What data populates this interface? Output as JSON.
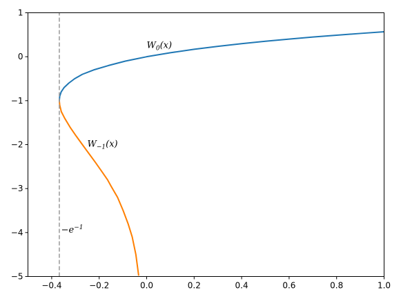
{
  "chart_data": {
    "type": "line",
    "title": "",
    "xlabel": "",
    "ylabel": "",
    "xlim": [
      -0.5,
      1.0
    ],
    "ylim": [
      -5,
      1
    ],
    "grid": false,
    "x_ticks": [
      -0.4,
      -0.2,
      0.0,
      0.2,
      0.4,
      0.6,
      0.8,
      1.0
    ],
    "x_tick_labels": [
      "−0.4",
      "−0.2",
      "0.0",
      "0.2",
      "0.4",
      "0.6",
      "0.8",
      "1.0"
    ],
    "y_ticks": [
      1,
      0,
      -1,
      -2,
      -3,
      -4,
      -5
    ],
    "y_tick_labels": [
      "1",
      "0",
      "−1",
      "−2",
      "−3",
      "−4",
      "−5"
    ],
    "series": [
      {
        "color": "#1f77b4",
        "x": [
          -0.3679,
          -0.3662,
          -0.36,
          -0.3476,
          -0.3279,
          -0.3033,
          -0.2707,
          -0.2231,
          -0.1607,
          -0.0896,
          -0.0452,
          0.0,
          0.1,
          0.2,
          0.3,
          0.4,
          0.5,
          0.6,
          0.7,
          0.8,
          0.9,
          1.0
        ],
        "y": [
          -1.0,
          -0.9,
          -0.8,
          -0.7,
          -0.6,
          -0.5,
          -0.4,
          -0.3,
          -0.2,
          -0.1,
          -0.05,
          0.0,
          0.0913,
          0.1689,
          0.2368,
          0.2972,
          0.3517,
          0.4016,
          0.4475,
          0.49,
          0.5297,
          0.5671
        ]
      },
      {
        "color": "#ff7f00",
        "x": [
          -0.3679,
          -0.3662,
          -0.3595,
          -0.3452,
          -0.323,
          -0.2975,
          -0.2707,
          -0.2436,
          -0.2165,
          -0.1904,
          -0.1647,
          -0.1494,
          -0.1226,
          -0.099,
          -0.0782,
          -0.0609,
          -0.0455,
          -0.0337
        ],
        "y": [
          -1.0,
          -1.1,
          -1.25,
          -1.4,
          -1.6,
          -1.8,
          -2.0,
          -2.2,
          -2.4,
          -2.6,
          -2.8,
          -2.95,
          -3.2,
          -3.5,
          -3.8,
          -4.1,
          -4.5,
          -4.98
        ]
      },
      {
        "color": "#999999",
        "dashed": true,
        "x": [
          -0.3679,
          -0.3679
        ],
        "y": [
          -5,
          1
        ]
      }
    ],
    "annotations": [
      {
        "base": "W",
        "sub": "0",
        "tail": "(x)",
        "x": 0.0,
        "y": 0.2
      },
      {
        "base": "W",
        "sub": "−1",
        "tail": "(x)",
        "x": -0.25,
        "y": -2.05
      },
      {
        "base": "−e",
        "sup": "−1",
        "x": -0.36,
        "y": -4.0
      }
    ]
  }
}
